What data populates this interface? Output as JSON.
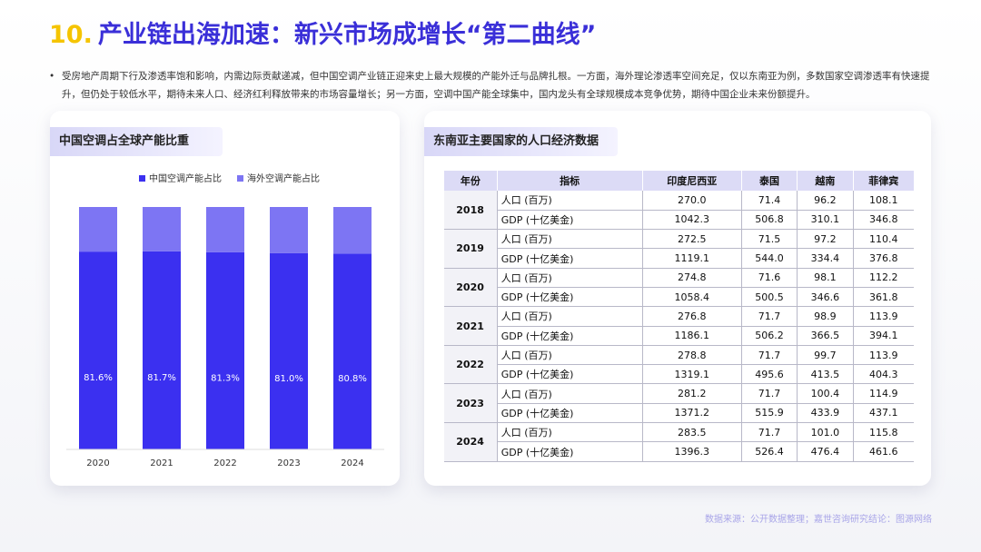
{
  "header": {
    "number": "10.",
    "title": "产业链出海加速：新兴市场成增长“第二曲线”"
  },
  "bullet": "受房地产周期下行及渗透率饱和影响，内需边际贡献递减，但中国空调产业链正迎来史上最大规模的产能外迁与品牌扎根。一方面，海外理论渗透率空间充足，仅以东南亚为例，多数国家空调渗透率有快速提升，但仍处于较低水平，期待未来人口、经济红利释放带来的市场容量增长；另一方面，空调中国产能全球集中，国内龙头有全球规模成本竞争优势，期待中国企业未来份额提升。",
  "chart_data": {
    "type": "stacked_bar",
    "title": "中国空调占全球产能比重",
    "categories": [
      "2020",
      "2021",
      "2022",
      "2023",
      "2024"
    ],
    "series": [
      {
        "name": "中国空调产能占比",
        "color": "#3b30f0",
        "values": [
          81.6,
          81.7,
          81.3,
          81.0,
          80.8
        ],
        "value_labels": [
          "81.6%",
          "81.7%",
          "81.3%",
          "81.0%",
          "80.8%"
        ]
      },
      {
        "name": "海外空调产能占比",
        "color": "#7d75f3",
        "values": [
          18.4,
          18.3,
          18.7,
          19.0,
          19.2
        ]
      }
    ],
    "ylim": [
      0,
      100
    ],
    "legend": "top"
  },
  "table": {
    "title": "东南亚主要国家的人口经济数据",
    "columns": [
      "年份",
      "指标",
      "印度尼西亚",
      "泰国",
      "越南",
      "菲律宾"
    ],
    "groups": [
      {
        "year": "2018",
        "rows": [
          [
            "人口 (百万)",
            "270.0",
            "71.4",
            "96.2",
            "108.1"
          ],
          [
            "GDP (十亿美金)",
            "1042.3",
            "506.8",
            "310.1",
            "346.8"
          ]
        ]
      },
      {
        "year": "2019",
        "rows": [
          [
            "人口 (百万)",
            "272.5",
            "71.5",
            "97.2",
            "110.4"
          ],
          [
            "GDP (十亿美金)",
            "1119.1",
            "544.0",
            "334.4",
            "376.8"
          ]
        ]
      },
      {
        "year": "2020",
        "rows": [
          [
            "人口 (百万)",
            "274.8",
            "71.6",
            "98.1",
            "112.2"
          ],
          [
            "GDP (十亿美金)",
            "1058.4",
            "500.5",
            "346.6",
            "361.8"
          ]
        ]
      },
      {
        "year": "2021",
        "rows": [
          [
            "人口 (百万)",
            "276.8",
            "71.7",
            "98.9",
            "113.9"
          ],
          [
            "GDP (十亿美金)",
            "1186.1",
            "506.2",
            "366.5",
            "394.1"
          ]
        ]
      },
      {
        "year": "2022",
        "rows": [
          [
            "人口 (百万)",
            "278.8",
            "71.7",
            "99.7",
            "113.9"
          ],
          [
            "GDP (十亿美金)",
            "1319.1",
            "495.6",
            "413.5",
            "404.3"
          ]
        ]
      },
      {
        "year": "2023",
        "rows": [
          [
            "人口 (百万)",
            "281.2",
            "71.7",
            "100.4",
            "114.9"
          ],
          [
            "GDP (十亿美金)",
            "1371.2",
            "515.9",
            "433.9",
            "437.1"
          ]
        ]
      },
      {
        "year": "2024",
        "rows": [
          [
            "人口 (百万)",
            "283.5",
            "71.7",
            "101.0",
            "115.8"
          ],
          [
            "GDP (十亿美金)",
            "1396.3",
            "526.4",
            "476.4",
            "461.6"
          ]
        ]
      }
    ]
  },
  "source": "数据来源：公开数据整理；嘉世咨询研究结论：图源网络"
}
